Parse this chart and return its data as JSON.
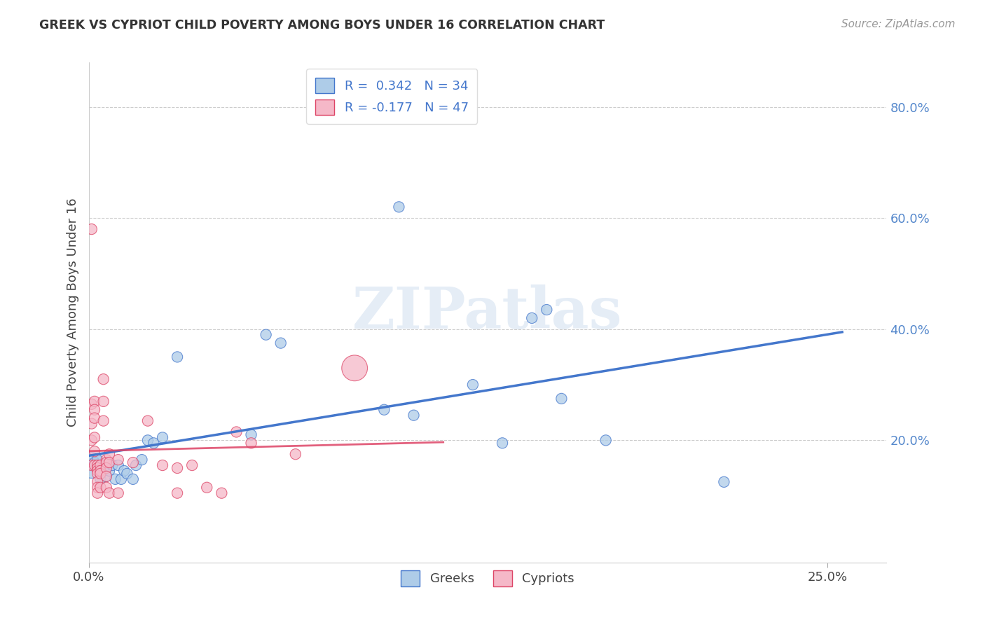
{
  "title": "GREEK VS CYPRIOT CHILD POVERTY AMONG BOYS UNDER 16 CORRELATION CHART",
  "source": "Source: ZipAtlas.com",
  "xlabel_ticks": [
    "0.0%",
    "25.0%"
  ],
  "ylabel_ticks": [
    "20.0%",
    "40.0%",
    "60.0%",
    "80.0%"
  ],
  "ylabel_label": "Child Poverty Among Boys Under 16",
  "xlim": [
    0.0,
    0.27
  ],
  "ylim": [
    -0.02,
    0.88
  ],
  "ytick_vals": [
    0.2,
    0.4,
    0.6,
    0.8
  ],
  "xtick_vals": [
    0.0,
    0.25
  ],
  "legend_r_greek": "R =  0.342   N = 34",
  "legend_r_cypriot": "R = -0.177   N = 47",
  "greek_color": "#aecce8",
  "cypriot_color": "#f5b8c8",
  "greek_line_color": "#4477cc",
  "cypriot_line_color": "#dd4466",
  "watermark": "ZIPatlas",
  "greeks_x": [
    0.001,
    0.002,
    0.003,
    0.004,
    0.004,
    0.005,
    0.006,
    0.007,
    0.008,
    0.009,
    0.01,
    0.011,
    0.012,
    0.013,
    0.015,
    0.016,
    0.018,
    0.02,
    0.022,
    0.025,
    0.03,
    0.055,
    0.06,
    0.065,
    0.1,
    0.105,
    0.11,
    0.13,
    0.14,
    0.15,
    0.155,
    0.16,
    0.175,
    0.215
  ],
  "greeks_y": [
    0.155,
    0.16,
    0.165,
    0.13,
    0.14,
    0.15,
    0.135,
    0.145,
    0.155,
    0.13,
    0.155,
    0.13,
    0.145,
    0.14,
    0.13,
    0.155,
    0.165,
    0.2,
    0.195,
    0.205,
    0.35,
    0.21,
    0.39,
    0.375,
    0.255,
    0.62,
    0.245,
    0.3,
    0.195,
    0.42,
    0.435,
    0.275,
    0.2,
    0.125
  ],
  "cypriots_x": [
    0.001,
    0.001,
    0.001,
    0.001,
    0.001,
    0.002,
    0.002,
    0.002,
    0.002,
    0.002,
    0.002,
    0.003,
    0.003,
    0.003,
    0.003,
    0.003,
    0.003,
    0.003,
    0.004,
    0.004,
    0.004,
    0.004,
    0.005,
    0.005,
    0.005,
    0.006,
    0.006,
    0.006,
    0.006,
    0.006,
    0.007,
    0.007,
    0.007,
    0.01,
    0.01,
    0.015,
    0.02,
    0.025,
    0.03,
    0.03,
    0.035,
    0.04,
    0.045,
    0.05,
    0.055,
    0.07,
    0.09
  ],
  "cypriots_y": [
    0.58,
    0.265,
    0.23,
    0.2,
    0.155,
    0.27,
    0.255,
    0.24,
    0.205,
    0.18,
    0.155,
    0.155,
    0.15,
    0.145,
    0.14,
    0.125,
    0.115,
    0.105,
    0.155,
    0.145,
    0.14,
    0.115,
    0.31,
    0.27,
    0.235,
    0.165,
    0.16,
    0.15,
    0.135,
    0.115,
    0.175,
    0.16,
    0.105,
    0.165,
    0.105,
    0.16,
    0.235,
    0.155,
    0.15,
    0.105,
    0.155,
    0.115,
    0.105,
    0.215,
    0.195,
    0.175,
    0.33
  ],
  "dot_size": 120,
  "big_greek_idx": 0,
  "big_greek_size": 700,
  "big_cypriot_idx": 46,
  "big_cypriot_size": 700
}
